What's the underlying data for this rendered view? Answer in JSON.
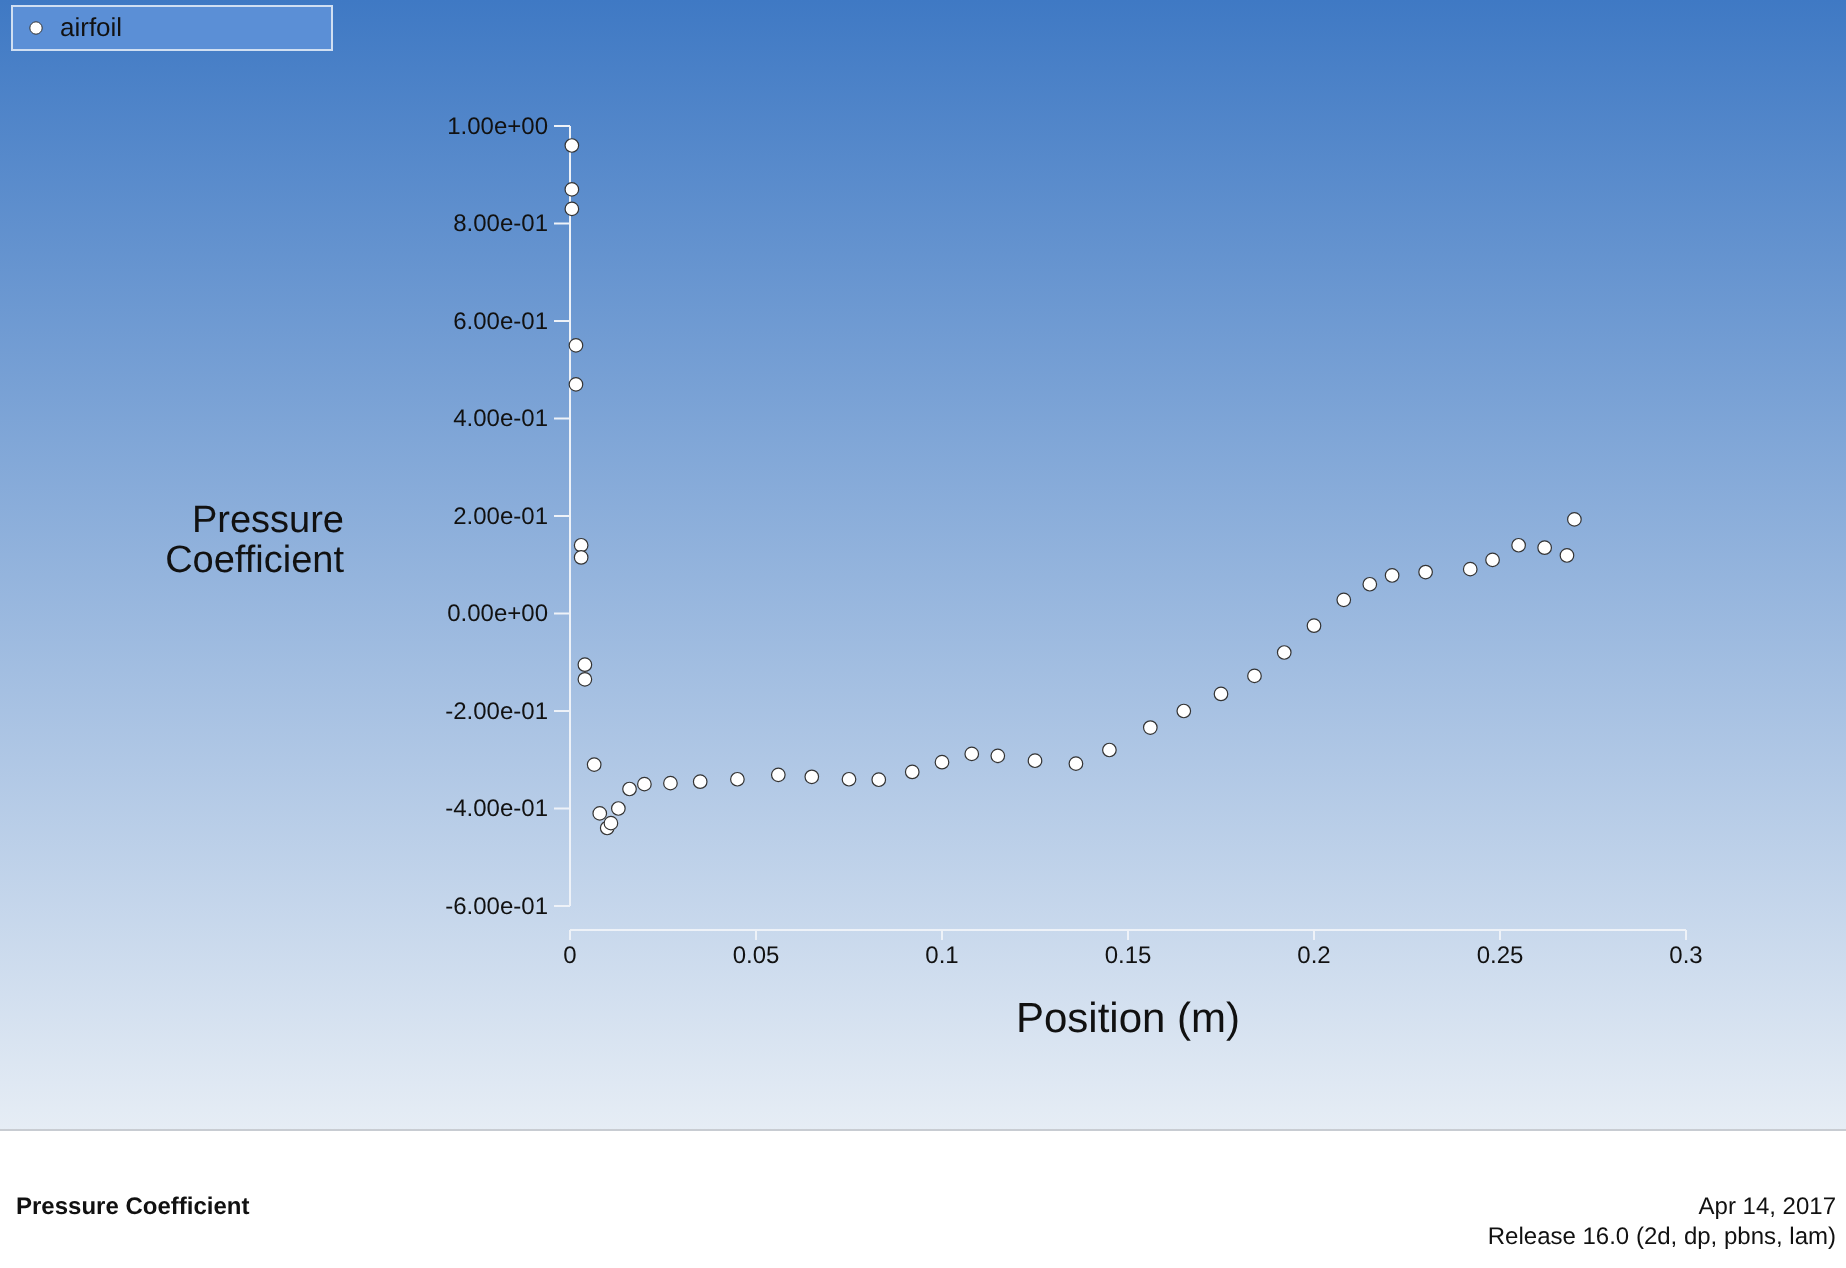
{
  "chart_data": {
    "type": "scatter",
    "title": "Pressure Coefficient",
    "xlabel": "Position (m)",
    "ylabel": "Pressure Coefficient",
    "annotations": [
      "Apr 14, 2017",
      "Release 16.0 (2d, dp, pbns, lam)"
    ],
    "xlim": [
      0,
      0.3
    ],
    "xticks": [
      {
        "value": 0,
        "label": "0"
      },
      0.05,
      0.1,
      0.15,
      0.2,
      0.25,
      0.3
    ],
    "ylim": [
      -0.6,
      1.0
    ],
    "yticks": [
      {
        "value": -0.6,
        "label": "-6.00e-01"
      },
      {
        "value": -0.4,
        "label": "-4.00e-01"
      },
      {
        "value": -0.2,
        "label": "-2.00e-01"
      },
      {
        "value": 0,
        "label": "0.00e+00"
      },
      {
        "value": 0.2,
        "label": "2.00e-01"
      },
      {
        "value": 0.4,
        "label": "4.00e-01"
      },
      {
        "value": 0.6,
        "label": "6.00e-01"
      },
      {
        "value": 0.8,
        "label": "8.00e-01"
      },
      {
        "value": 1.0,
        "label": "1.00e+00"
      }
    ],
    "grid": false,
    "legend": "top left",
    "marker": "circle",
    "series": [
      {
        "name": "airfoil",
        "color": "#ffffff",
        "x": [
          0.0005,
          0.0005,
          0.0005,
          0.0016,
          0.0016,
          0.003,
          0.003,
          0.004,
          0.004,
          0.0065,
          0.008,
          0.01,
          0.011,
          0.013,
          0.016,
          0.02,
          0.027,
          0.035,
          0.045,
          0.056,
          0.065,
          0.075,
          0.083,
          0.092,
          0.1,
          0.108,
          0.115,
          0.125,
          0.136,
          0.145,
          0.156,
          0.165,
          0.175,
          0.184,
          0.192,
          0.2,
          0.208,
          0.215,
          0.221,
          0.23,
          0.242,
          0.248,
          0.255,
          0.262,
          0.268,
          0.27
        ],
        "values": [
          0.96,
          0.87,
          0.83,
          0.55,
          0.47,
          0.14,
          0.115,
          -0.105,
          -0.135,
          -0.31,
          -0.41,
          -0.44,
          -0.43,
          -0.4,
          -0.36,
          -0.35,
          -0.348,
          -0.345,
          -0.34,
          -0.331,
          -0.335,
          -0.34,
          -0.341,
          -0.325,
          -0.305,
          -0.288,
          -0.292,
          -0.302,
          -0.308,
          -0.28,
          -0.234,
          -0.2,
          -0.165,
          -0.128,
          -0.08,
          -0.025,
          0.028,
          0.06,
          0.078,
          0.085,
          0.091,
          0.11,
          0.14,
          0.135,
          0.119,
          0.193
        ]
      }
    ]
  }
}
